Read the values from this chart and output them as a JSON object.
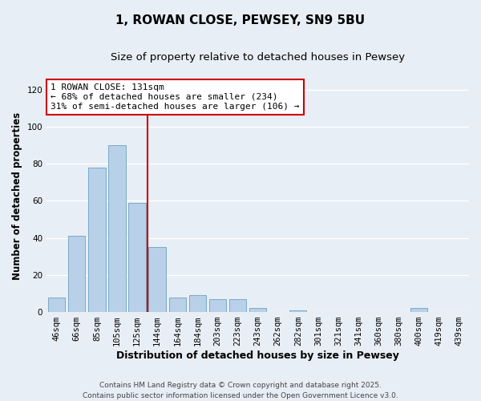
{
  "title": "1, ROWAN CLOSE, PEWSEY, SN9 5BU",
  "subtitle": "Size of property relative to detached houses in Pewsey",
  "xlabel": "Distribution of detached houses by size in Pewsey",
  "ylabel": "Number of detached properties",
  "categories": [
    "46sqm",
    "66sqm",
    "85sqm",
    "105sqm",
    "125sqm",
    "144sqm",
    "164sqm",
    "184sqm",
    "203sqm",
    "223sqm",
    "243sqm",
    "262sqm",
    "282sqm",
    "301sqm",
    "321sqm",
    "341sqm",
    "360sqm",
    "380sqm",
    "400sqm",
    "419sqm",
    "439sqm"
  ],
  "values": [
    8,
    41,
    78,
    90,
    59,
    35,
    8,
    9,
    7,
    7,
    2,
    0,
    1,
    0,
    0,
    0,
    0,
    0,
    2,
    0,
    0
  ],
  "bar_color": "#b8d0e8",
  "bar_edge_color": "#7aaac8",
  "vline_x": 4.5,
  "vline_color": "#cc0000",
  "annotation_line1": "1 ROWAN CLOSE: 131sqm",
  "annotation_line2": "← 68% of detached houses are smaller (234)",
  "annotation_line3": "31% of semi-detached houses are larger (106) →",
  "annotation_box_color": "#ffffff",
  "annotation_box_edge": "#cc0000",
  "ylim": [
    0,
    125
  ],
  "yticks": [
    0,
    20,
    40,
    60,
    80,
    100,
    120
  ],
  "footer_line1": "Contains HM Land Registry data © Crown copyright and database right 2025.",
  "footer_line2": "Contains public sector information licensed under the Open Government Licence v3.0.",
  "bg_color": "#e8eef5",
  "grid_color": "#ffffff",
  "title_fontsize": 11,
  "subtitle_fontsize": 9.5,
  "xlabel_fontsize": 9,
  "ylabel_fontsize": 8.5,
  "tick_fontsize": 7.5,
  "annotation_fontsize": 8,
  "footer_fontsize": 6.5
}
